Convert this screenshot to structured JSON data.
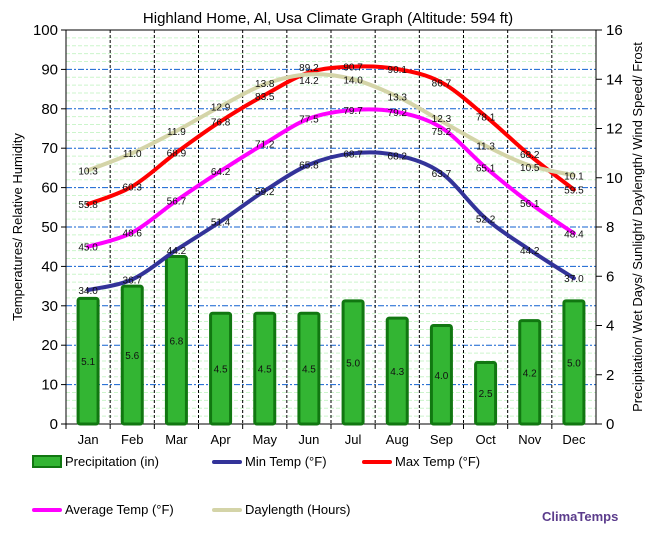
{
  "chart_data": {
    "type": "bar+line",
    "title": "Highland Home, Al, Usa Climate Graph (Altitude: 594 ft)",
    "ylabel": "Temperatures/ Relative Humidity",
    "y2label": "Precipitation/ Wet Days/ Sunlight/ Daylength/ Wind Speed/ Frost",
    "ylim": [
      0,
      100
    ],
    "y2lim": [
      0,
      16
    ],
    "yticks": [
      "0",
      "10",
      "20",
      "30",
      "40",
      "50",
      "60",
      "70",
      "80",
      "90",
      "100"
    ],
    "y2ticks": [
      "0",
      "2",
      "4",
      "6",
      "8",
      "10",
      "12",
      "14",
      "16"
    ],
    "categories": [
      "Jan",
      "Feb",
      "Mar",
      "Apr",
      "May",
      "Jun",
      "Jul",
      "Aug",
      "Sep",
      "Oct",
      "Nov",
      "Dec"
    ],
    "grid": true,
    "legend_position": "bottom",
    "series": [
      {
        "name": "Precipitation (in)",
        "type": "bar",
        "axis": "right",
        "color": "#2e9e2e",
        "values": [
          5.1,
          5.6,
          6.8,
          4.5,
          4.5,
          4.5,
          5.0,
          4.3,
          4.0,
          2.5,
          4.2,
          5.0
        ]
      },
      {
        "name": "Min Temp (°F)",
        "type": "line",
        "axis": "left",
        "color": "#333399",
        "values": [
          34.0,
          36.7,
          44.2,
          51.4,
          59.2,
          65.8,
          68.7,
          68.2,
          63.7,
          52.2,
          44.2,
          37.0
        ]
      },
      {
        "name": "Max Temp (°F)",
        "type": "line",
        "axis": "left",
        "color": "#ff0000",
        "values": [
          55.8,
          60.3,
          68.9,
          76.8,
          83.5,
          89.2,
          90.7,
          90.1,
          86.7,
          78.1,
          68.2,
          59.5
        ]
      },
      {
        "name": "Average Temp (°F)",
        "type": "line",
        "axis": "left",
        "color": "#ff00ff",
        "values": [
          45.0,
          48.6,
          56.7,
          64.2,
          71.2,
          77.5,
          79.7,
          79.2,
          75.2,
          65.1,
          56.1,
          48.4
        ]
      },
      {
        "name": "Daylength (Hours)",
        "type": "line",
        "axis": "right",
        "color": "#d4d4a8",
        "values": [
          10.3,
          11.0,
          11.9,
          12.9,
          13.8,
          14.2,
          14.0,
          13.3,
          12.3,
          11.3,
          10.5,
          10.1
        ]
      }
    ]
  },
  "brand": "ClimaTemps"
}
